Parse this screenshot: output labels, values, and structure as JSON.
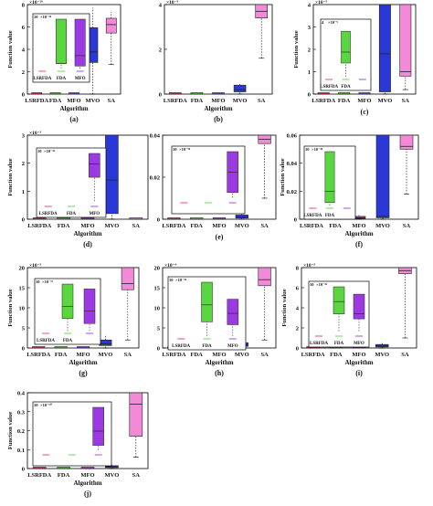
{
  "figure": {
    "panels": [
      {
        "letter": "(a)",
        "ylabel": "Function value",
        "xlabel": "Algorithm",
        "scale": "×10⁻²⁶",
        "yticks": [
          "0",
          "2",
          "4",
          "6",
          "8"
        ],
        "inset": {
          "scale": "×10⁻²⁶",
          "ytick": "10",
          "labels": [
            "LSRFDA",
            "FDA",
            "MFO"
          ]
        }
      },
      {
        "letter": "(b)",
        "ylabel": "",
        "xlabel": "Algorithm",
        "scale": "×10⁻³",
        "yticks": [
          "0",
          "2",
          "4"
        ],
        "inset": null
      },
      {
        "letter": "(c)",
        "ylabel": "Function value",
        "xlabel": "",
        "scale": "×10⁻⁵",
        "yticks": [
          "0",
          "1",
          "2",
          "3",
          "4"
        ],
        "inset": {
          "scale": "×10⁻⁹",
          "ytick": "4",
          "labels": [
            "LSRFDA",
            "FDA"
          ]
        }
      },
      {
        "letter": "(d)",
        "ylabel": "Function value",
        "xlabel": "Algorithm",
        "scale": "×10⁻³",
        "yticks": [
          "0",
          "1",
          "2",
          "3"
        ],
        "inset": {
          "scale": "×10⁻⁴³",
          "ytick": "10",
          "labels": [
            "LSRFDA",
            "FDA",
            "MFO"
          ]
        }
      },
      {
        "letter": "(e)",
        "ylabel": "",
        "xlabel": "",
        "scale": "",
        "yticks": [
          "0",
          "0.02",
          "0.04"
        ],
        "inset": {
          "scale": "×10⁻³⁸",
          "ytick": "10",
          "labels": []
        }
      },
      {
        "letter": "(f)",
        "ylabel": "Function value",
        "xlabel": "Algorithm",
        "scale": "",
        "yticks": [
          "0",
          "0.02",
          "0.04",
          "0.06"
        ],
        "inset": {
          "scale": "×10⁻⁴⁴",
          "ytick": "10",
          "labels": [
            "LSRFDA",
            "FDA"
          ]
        }
      },
      {
        "letter": "(g)",
        "ylabel": "Function value",
        "xlabel": "Algorithm",
        "scale": "×10⁻⁵",
        "yticks": [
          "0",
          "5",
          "10",
          "15",
          "20"
        ],
        "inset": {
          "scale": "×10⁻⁵⁷",
          "ytick": "10",
          "labels": [
            "LSRFDA",
            "FDA"
          ]
        }
      },
      {
        "letter": "(h)",
        "ylabel": "",
        "xlabel": "Algorithm",
        "scale": "×10⁻⁴",
        "yticks": [
          "0",
          "5",
          "10",
          "15",
          "20"
        ],
        "inset": {
          "scale": "×10⁻⁴²",
          "ytick": "10",
          "labels": [
            "LSRFDA",
            "FDA",
            "MFO"
          ]
        }
      },
      {
        "letter": "(i)",
        "ylabel": "Function value",
        "xlabel": "Algorithm",
        "scale": "×10⁻⁵",
        "yticks": [
          "0",
          "2",
          "4",
          "6",
          "8"
        ],
        "inset": {
          "scale": "×10⁻⁴¹",
          "ytick": "10",
          "labels": [
            "LSRFDA",
            "FDA",
            "MFO"
          ]
        }
      },
      {
        "letter": "(j)",
        "ylabel": "Function value",
        "xlabel": "Algorithm",
        "scale": "",
        "yticks": [
          "0",
          "0.1",
          "0.2",
          "0.3",
          "0.4"
        ],
        "inset": {
          "scale": "×10⁻³⁰",
          "ytick": "10",
          "labels": []
        }
      }
    ],
    "categories": [
      "LSRFDA",
      "FDA",
      "MFO",
      "MVO",
      "SA"
    ],
    "b_categories": [
      "LSRFDA",
      "FDA",
      "MFO",
      "MVO",
      "SA"
    ],
    "colors": {
      "LSRFDA": "#e8385a",
      "FDA": "#5ad640",
      "MFO": "#9b3ae0",
      "MVO": "#2a38d8",
      "SA": "#f28ad8"
    }
  },
  "chart_data": [
    {
      "type": "box",
      "panel": "(a)",
      "categories": [
        "LSRFDA",
        "FDA",
        "MFO",
        "MVO",
        "SA"
      ],
      "ylim": [
        0,
        8.5
      ],
      "boxes": [
        {
          "q1": 0,
          "med": 0,
          "q3": 0,
          "lo": 0,
          "hi": 0
        },
        {
          "q1": 0,
          "med": 0,
          "q3": 0,
          "lo": 0,
          "hi": 0
        },
        {
          "q1": 0,
          "med": 0,
          "q3": 0,
          "lo": 0,
          "hi": 0
        },
        {
          "q1": 3,
          "med": 4,
          "q3": 6.3,
          "lo": 0,
          "hi": 8.2
        },
        {
          "q1": 5.8,
          "med": 6.6,
          "q3": 7.2,
          "lo": 2.8,
          "hi": 7.8
        }
      ]
    },
    {
      "type": "box",
      "panel": "(b)",
      "categories": [
        "LSRFDA",
        "FDA",
        "MFO",
        "MVO",
        "SA"
      ],
      "ylim": [
        0,
        4
      ],
      "boxes": [
        {
          "q1": 0,
          "med": 0,
          "q3": 0,
          "lo": 0,
          "hi": 0
        },
        {
          "q1": 0,
          "med": 0,
          "q3": 0,
          "lo": 0,
          "hi": 0
        },
        {
          "q1": 0,
          "med": 0,
          "q3": 0,
          "lo": 0,
          "hi": 0
        },
        {
          "q1": 0.1,
          "med": 0.2,
          "q3": 0.4,
          "lo": 0,
          "hi": 0.5
        },
        {
          "q1": 3.4,
          "med": 3.7,
          "q3": 4,
          "lo": 1.6,
          "hi": 4
        }
      ]
    },
    {
      "type": "box",
      "panel": "(c)",
      "categories": [
        "LSRFDA",
        "FDA",
        "MFO",
        "MVO",
        "SA"
      ],
      "ylim": [
        0,
        4
      ],
      "boxes": [
        {
          "q1": 0,
          "med": 0,
          "q3": 0,
          "lo": 0,
          "hi": 0
        },
        {
          "q1": 0,
          "med": 0,
          "q3": 0,
          "lo": 0,
          "hi": 0
        },
        {
          "q1": 0,
          "med": 0,
          "q3": 0,
          "lo": 0,
          "hi": 0
        },
        {
          "q1": 0.1,
          "med": 1.8,
          "q3": 4,
          "lo": 0,
          "hi": 4
        },
        {
          "q1": 0.8,
          "med": 1,
          "q3": 4,
          "lo": 0.2,
          "hi": 4
        }
      ]
    },
    {
      "type": "box",
      "panel": "(d)",
      "categories": [
        "LSRFDA",
        "FDA",
        "MFO",
        "MVO",
        "SA"
      ],
      "ylim": [
        0,
        3
      ],
      "boxes": [
        {
          "q1": 0,
          "med": 0,
          "q3": 0,
          "lo": 0,
          "hi": 0
        },
        {
          "q1": 0,
          "med": 0,
          "q3": 0,
          "lo": 0,
          "hi": 0
        },
        {
          "q1": 0,
          "med": 0,
          "q3": 0,
          "lo": 0,
          "hi": 0
        },
        {
          "q1": 0.2,
          "med": 1.4,
          "q3": 3,
          "lo": 0,
          "hi": 3
        },
        {
          "q1": 0,
          "med": 0,
          "q3": 0,
          "lo": 0,
          "hi": 0
        }
      ]
    },
    {
      "type": "box",
      "panel": "(e)",
      "categories": [
        "LSRFDA",
        "FDA",
        "MFO",
        "MVO",
        "SA"
      ],
      "ylim": [
        0,
        0.04
      ],
      "boxes": [
        {
          "q1": 0,
          "med": 0,
          "q3": 0,
          "lo": 0,
          "hi": 0
        },
        {
          "q1": 0,
          "med": 0,
          "q3": 0,
          "lo": 0,
          "hi": 0
        },
        {
          "q1": 0,
          "med": 0,
          "q3": 0,
          "lo": 0,
          "hi": 0
        },
        {
          "q1": 0.0005,
          "med": 0.001,
          "q3": 0.002,
          "lo": 0,
          "hi": 0.003
        },
        {
          "q1": 0.036,
          "med": 0.038,
          "q3": 0.04,
          "lo": 0.01,
          "hi": 0.04
        }
      ]
    },
    {
      "type": "box",
      "panel": "(f)",
      "categories": [
        "LSRFDA",
        "FDA",
        "MFO",
        "MVO",
        "SA"
      ],
      "ylim": [
        0,
        0.06
      ],
      "boxes": [
        {
          "q1": 0,
          "med": 0,
          "q3": 0,
          "lo": 0,
          "hi": 0
        },
        {
          "q1": 0,
          "med": 0,
          "q3": 0,
          "lo": 0,
          "hi": 0
        },
        {
          "q1": 0.0005,
          "med": 0.001,
          "q3": 0.002,
          "lo": 0,
          "hi": 0.003
        },
        {
          "q1": 0.001,
          "med": 0.002,
          "q3": 0.06,
          "lo": 0,
          "hi": 0.06
        },
        {
          "q1": 0.05,
          "med": 0.052,
          "q3": 0.06,
          "lo": 0.018,
          "hi": 0.06
        }
      ]
    },
    {
      "type": "box",
      "panel": "(g)",
      "categories": [
        "LSRFDA",
        "FDA",
        "MFO",
        "MVO",
        "SA"
      ],
      "ylim": [
        0,
        20
      ],
      "boxes": [
        {
          "q1": 0,
          "med": 0,
          "q3": 0,
          "lo": 0,
          "hi": 0
        },
        {
          "q1": 0,
          "med": 0,
          "q3": 0,
          "lo": 0,
          "hi": 0
        },
        {
          "q1": 0,
          "med": 0,
          "q3": 0,
          "lo": 0,
          "hi": 0
        },
        {
          "q1": 0.6,
          "med": 1,
          "q3": 2,
          "lo": 0,
          "hi": 3
        },
        {
          "q1": 14.5,
          "med": 16,
          "q3": 20,
          "lo": 2,
          "hi": 20
        }
      ]
    },
    {
      "type": "box",
      "panel": "(h)",
      "categories": [
        "LSRFDA",
        "FDA",
        "MFO",
        "MVO",
        "SA"
      ],
      "ylim": [
        0,
        20
      ],
      "boxes": [
        {
          "q1": 0,
          "med": 0,
          "q3": 0,
          "lo": 0,
          "hi": 0
        },
        {
          "q1": 0,
          "med": 0,
          "q3": 0,
          "lo": 0,
          "hi": 0
        },
        {
          "q1": 0,
          "med": 0,
          "q3": 0,
          "lo": 0,
          "hi": 0
        },
        {
          "q1": 0.4,
          "med": 0.8,
          "q3": 1.3,
          "lo": 0,
          "hi": 1.8
        },
        {
          "q1": 15.5,
          "med": 17,
          "q3": 20,
          "lo": 2,
          "hi": 20
        }
      ]
    },
    {
      "type": "box",
      "panel": "(i)",
      "categories": [
        "LSRFDA",
        "FDA",
        "MFO",
        "MVO",
        "SA"
      ],
      "ylim": [
        0,
        8
      ],
      "boxes": [
        {
          "q1": 0,
          "med": 0,
          "q3": 0,
          "lo": 0,
          "hi": 0
        },
        {
          "q1": 0,
          "med": 0,
          "q3": 0,
          "lo": 0,
          "hi": 0
        },
        {
          "q1": 0,
          "med": 0,
          "q3": 0,
          "lo": 0,
          "hi": 0
        },
        {
          "q1": 0.1,
          "med": 0.2,
          "q3": 0.35,
          "lo": 0,
          "hi": 0.5
        },
        {
          "q1": 7.4,
          "med": 7.7,
          "q3": 8,
          "lo": 1,
          "hi": 8
        }
      ]
    },
    {
      "type": "box",
      "panel": "(j)",
      "categories": [
        "LSRFDA",
        "FDA",
        "MFO",
        "MVO",
        "SA"
      ],
      "ylim": [
        0,
        0.4
      ],
      "boxes": [
        {
          "q1": 0,
          "med": 0,
          "q3": 0,
          "lo": 0,
          "hi": 0
        },
        {
          "q1": 0,
          "med": 0,
          "q3": 0,
          "lo": 0,
          "hi": 0
        },
        {
          "q1": 0,
          "med": 0,
          "q3": 0,
          "lo": 0,
          "hi": 0
        },
        {
          "q1": 0.005,
          "med": 0.01,
          "q3": 0.015,
          "lo": 0,
          "hi": 0.02
        },
        {
          "q1": 0.17,
          "med": 0.34,
          "q3": 0.4,
          "lo": 0.06,
          "hi": 0.4
        }
      ]
    }
  ]
}
